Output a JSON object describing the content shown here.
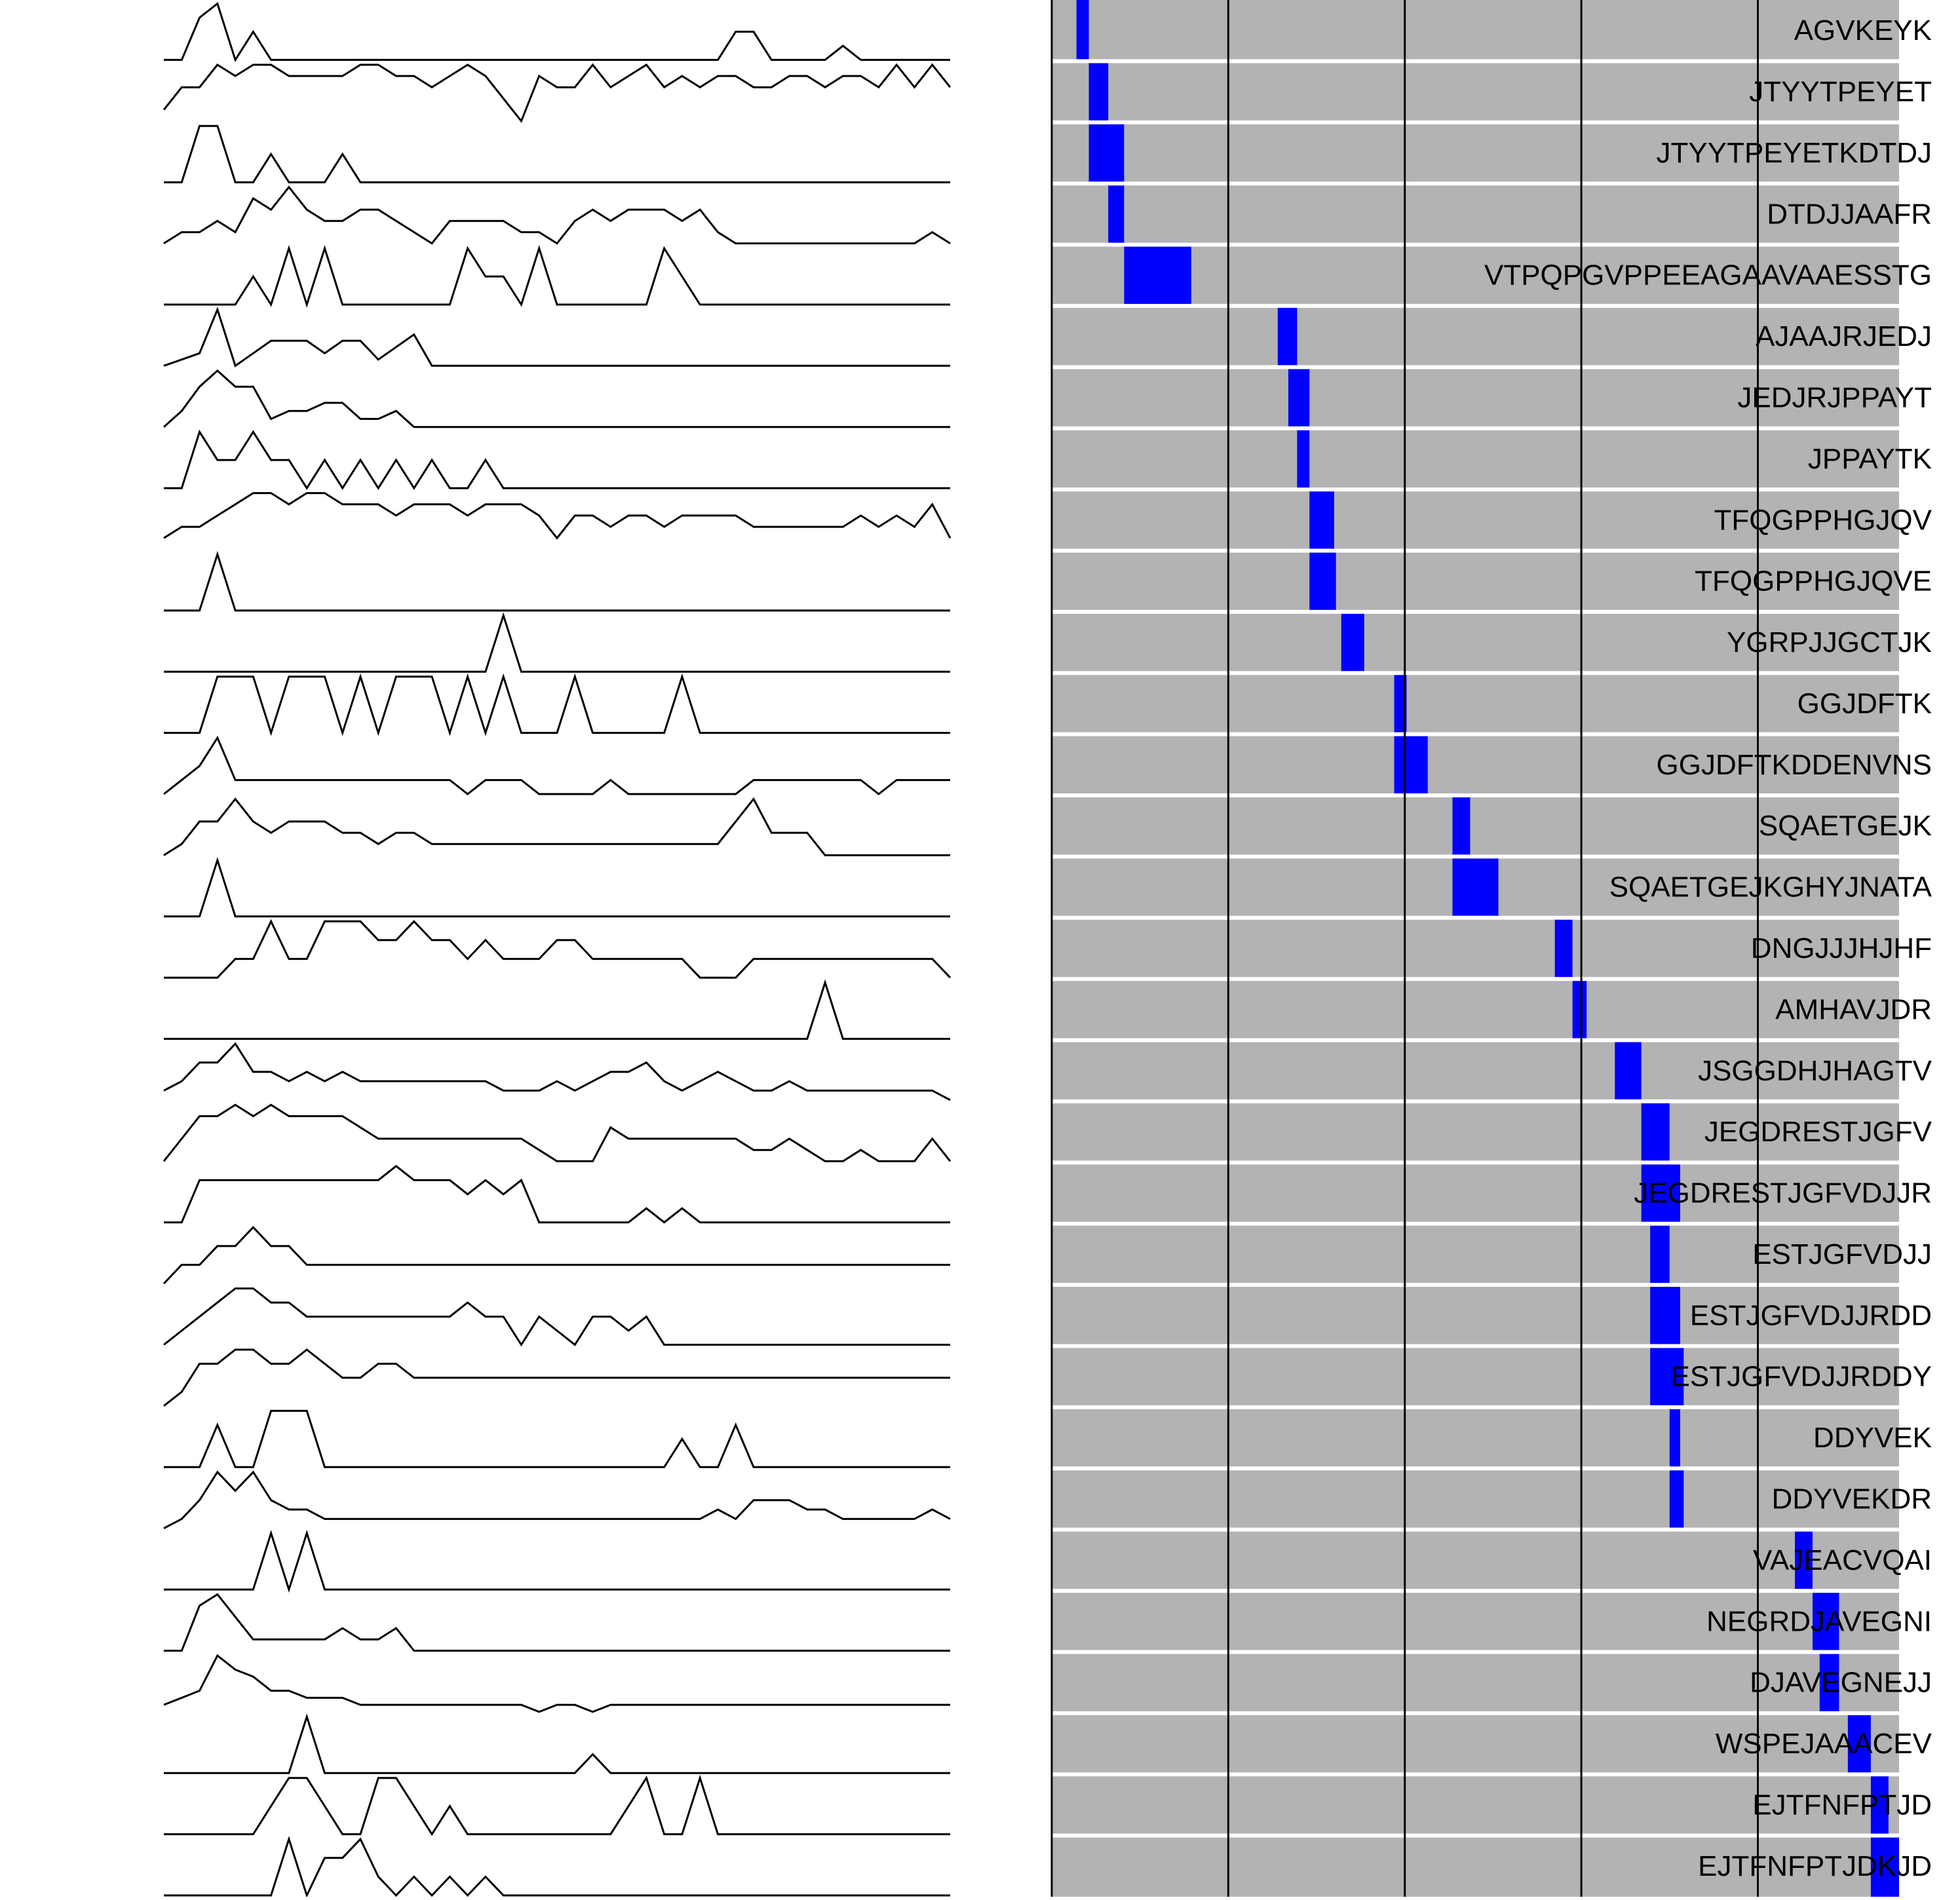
{
  "chart_data": {
    "type": "peptide-coverage",
    "title": "",
    "colors": {
      "lane_background": "#b3b3b3",
      "lane_separator": "#ffffff",
      "coverage_bar": "#0000ff",
      "trace": "#000000",
      "gridline": "#000000"
    },
    "coverage_domain": [
      0,
      480
    ],
    "gridlines": [
      0,
      100,
      200,
      300,
      400
    ],
    "peptides": [
      {
        "sequence": "AGVKEYK",
        "start": 14,
        "end": 21
      },
      {
        "sequence": "JTYYTPEYET",
        "start": 21,
        "end": 32
      },
      {
        "sequence": "JTYYTPEYETKDTDJ",
        "start": 21,
        "end": 41
      },
      {
        "sequence": "DTDJJAAFR",
        "start": 32,
        "end": 41
      },
      {
        "sequence": "VTPQPGVPPEEAGAAVAAESSTG",
        "start": 41,
        "end": 79
      },
      {
        "sequence": "AJAAJRJEDJ",
        "start": 128,
        "end": 139
      },
      {
        "sequence": "JEDJRJPPAYT",
        "start": 134,
        "end": 146
      },
      {
        "sequence": "JPPAYTK",
        "start": 139,
        "end": 146
      },
      {
        "sequence": "TFQGPPHGJQV",
        "start": 146,
        "end": 160
      },
      {
        "sequence": "TFQGPPHGJQVE",
        "start": 146,
        "end": 161
      },
      {
        "sequence": "YGRPJJGCTJK",
        "start": 164,
        "end": 177
      },
      {
        "sequence": "GGJDFTK",
        "start": 194,
        "end": 201
      },
      {
        "sequence": "GGJDFTKDDENVNS",
        "start": 194,
        "end": 213
      },
      {
        "sequence": "SQAETGEJK",
        "start": 227,
        "end": 237
      },
      {
        "sequence": "SQAETGEJKGHYJNATA",
        "start": 227,
        "end": 253
      },
      {
        "sequence": "DNGJJJHJHF",
        "start": 285,
        "end": 295
      },
      {
        "sequence": "AMHAVJDR",
        "start": 295,
        "end": 303
      },
      {
        "sequence": "JSGGDHJHAGTV",
        "start": 319,
        "end": 334
      },
      {
        "sequence": "JEGDRESTJGFV",
        "start": 334,
        "end": 350
      },
      {
        "sequence": "JEGDRESTJGFVDJJR",
        "start": 334,
        "end": 356
      },
      {
        "sequence": "ESTJGFVDJJ",
        "start": 339,
        "end": 350
      },
      {
        "sequence": "ESTJGFVDJJRDD",
        "start": 339,
        "end": 356
      },
      {
        "sequence": "ESTJGFVDJJRDDY",
        "start": 339,
        "end": 358
      },
      {
        "sequence": "DDYVEK",
        "start": 350,
        "end": 356
      },
      {
        "sequence": "DDYVEKDR",
        "start": 350,
        "end": 358
      },
      {
        "sequence": "VAJEACVQAI",
        "start": 421,
        "end": 431
      },
      {
        "sequence": "NEGRDJAVEGNI",
        "start": 431,
        "end": 446
      },
      {
        "sequence": "DJAVEGNEJJ",
        "start": 435,
        "end": 446
      },
      {
        "sequence": "WSPEJAAACEV",
        "start": 451,
        "end": 464
      },
      {
        "sequence": "EJTFNFPTJD",
        "start": 464,
        "end": 474
      },
      {
        "sequence": "EJTFNFPTJDKJD",
        "start": 464,
        "end": 480
      }
    ],
    "traces": [
      [
        0,
        0,
        3,
        4,
        0,
        2,
        0,
        0,
        0,
        0,
        0,
        0,
        0,
        0,
        0,
        0,
        0,
        0,
        0,
        0,
        0,
        0,
        0,
        0,
        0,
        0,
        0,
        0,
        0,
        0,
        0,
        0,
        2,
        2,
        0,
        0,
        0,
        0,
        1,
        0,
        0,
        0,
        0,
        0,
        0
      ],
      [
        1,
        3,
        3,
        5,
        4,
        5,
        5,
        4,
        4,
        4,
        4,
        5,
        5,
        4,
        4,
        3,
        4,
        5,
        4,
        2,
        0,
        4,
        3,
        3,
        5,
        3,
        4,
        5,
        3,
        4,
        3,
        4,
        4,
        3,
        3,
        4,
        4,
        3,
        4,
        4,
        3,
        5,
        3,
        5,
        3
      ],
      [
        0,
        0,
        4,
        4,
        0,
        0,
        2,
        0,
        0,
        0,
        2,
        0,
        0,
        0,
        0,
        0,
        0,
        0,
        0,
        0,
        0,
        0,
        0,
        0,
        0,
        0,
        0,
        0,
        0,
        0,
        0,
        0,
        0,
        0,
        0,
        0,
        0,
        0,
        0,
        0,
        0,
        0,
        0,
        0,
        0
      ],
      [
        0,
        1,
        1,
        2,
        1,
        4,
        3,
        5,
        3,
        2,
        2,
        3,
        3,
        2,
        1,
        0,
        2,
        2,
        2,
        2,
        1,
        1,
        0,
        2,
        3,
        2,
        3,
        3,
        3,
        2,
        3,
        1,
        0,
        0,
        0,
        0,
        0,
        0,
        0,
        0,
        0,
        0,
        0,
        1,
        0
      ],
      [
        0,
        0,
        0,
        0,
        0,
        1,
        0,
        2,
        0,
        2,
        0,
        0,
        0,
        0,
        0,
        0,
        0,
        2,
        1,
        1,
        0,
        2,
        0,
        0,
        0,
        0,
        0,
        0,
        2,
        1,
        0,
        0,
        0,
        0,
        0,
        0,
        0,
        0,
        0,
        0,
        0,
        0,
        0,
        0,
        0
      ],
      [
        0,
        1,
        2,
        9,
        0,
        2,
        4,
        4,
        4,
        2,
        4,
        4,
        1,
        3,
        5,
        0,
        0,
        0,
        0,
        0,
        0,
        0,
        0,
        0,
        0,
        0,
        0,
        0,
        0,
        0,
        0,
        0,
        0,
        0,
        0,
        0,
        0,
        0,
        0,
        0,
        0,
        0,
        0,
        0,
        0
      ],
      [
        0,
        2,
        5,
        7,
        5,
        5,
        1,
        2,
        2,
        3,
        3,
        1,
        1,
        2,
        0,
        0,
        0,
        0,
        0,
        0,
        0,
        0,
        0,
        0,
        0,
        0,
        0,
        0,
        0,
        0,
        0,
        0,
        0,
        0,
        0,
        0,
        0,
        0,
        0,
        0,
        0,
        0,
        0,
        0,
        0
      ],
      [
        0,
        0,
        2,
        1,
        1,
        2,
        1,
        1,
        0,
        1,
        0,
        1,
        0,
        1,
        0,
        1,
        0,
        0,
        1,
        0,
        0,
        0,
        0,
        0,
        0,
        0,
        0,
        0,
        0,
        0,
        0,
        0,
        0,
        0,
        0,
        0,
        0,
        0,
        0,
        0,
        0,
        0,
        0,
        0,
        0
      ],
      [
        1,
        2,
        2,
        3,
        4,
        5,
        5,
        4,
        5,
        5,
        4,
        4,
        4,
        3,
        4,
        4,
        4,
        3,
        4,
        4,
        4,
        3,
        1,
        3,
        3,
        2,
        3,
        3,
        2,
        3,
        3,
        3,
        3,
        2,
        2,
        2,
        2,
        2,
        2,
        3,
        2,
        3,
        2,
        4,
        1
      ],
      [
        0,
        0,
        0,
        6,
        0,
        0,
        0,
        0,
        0,
        0,
        0,
        0,
        0,
        0,
        0,
        0,
        0,
        0,
        0,
        0,
        0,
        0,
        0,
        0,
        0,
        0,
        0,
        0,
        0,
        0,
        0,
        0,
        0,
        0,
        0,
        0,
        0,
        0,
        0,
        0,
        0,
        0,
        0,
        0,
        0
      ],
      [
        0,
        0,
        0,
        0,
        0,
        0,
        0,
        0,
        0,
        0,
        0,
        0,
        0,
        0,
        0,
        0,
        0,
        0,
        0,
        6,
        0,
        0,
        0,
        0,
        0,
        0,
        0,
        0,
        0,
        0,
        0,
        0,
        0,
        0,
        0,
        0,
        0,
        0,
        0,
        0,
        0,
        0,
        0,
        0,
        0
      ],
      [
        0,
        0,
        0,
        1,
        1,
        1,
        0,
        1,
        1,
        1,
        0,
        1,
        0,
        1,
        1,
        1,
        0,
        1,
        0,
        1,
        0,
        0,
        0,
        1,
        0,
        0,
        0,
        0,
        0,
        1,
        0,
        0,
        0,
        0,
        0,
        0,
        0,
        0,
        0,
        0,
        0,
        0,
        0,
        0,
        0
      ],
      [
        0,
        1,
        2,
        4,
        1,
        1,
        1,
        1,
        1,
        1,
        1,
        1,
        1,
        1,
        1,
        1,
        1,
        0,
        1,
        1,
        1,
        0,
        0,
        0,
        0,
        1,
        0,
        0,
        0,
        0,
        0,
        0,
        0,
        1,
        1,
        1,
        1,
        1,
        1,
        1,
        0,
        1,
        1,
        1,
        1
      ],
      [
        0,
        1,
        3,
        3,
        5,
        3,
        2,
        3,
        3,
        3,
        2,
        2,
        1,
        2,
        2,
        1,
        1,
        1,
        1,
        1,
        1,
        1,
        1,
        1,
        1,
        1,
        1,
        1,
        1,
        1,
        1,
        1,
        3,
        5,
        2,
        2,
        2,
        0,
        0,
        0,
        0,
        0,
        0,
        0,
        0
      ],
      [
        0,
        0,
        0,
        6,
        0,
        0,
        0,
        0,
        0,
        0,
        0,
        0,
        0,
        0,
        0,
        0,
        0,
        0,
        0,
        0,
        0,
        0,
        0,
        0,
        0,
        0,
        0,
        0,
        0,
        0,
        0,
        0,
        0,
        0,
        0,
        0,
        0,
        0,
        0,
        0,
        0,
        0,
        0,
        0,
        0
      ],
      [
        0,
        0,
        0,
        0,
        1,
        1,
        3,
        1,
        1,
        3,
        3,
        3,
        2,
        2,
        3,
        2,
        2,
        1,
        2,
        1,
        1,
        1,
        2,
        2,
        1,
        1,
        1,
        1,
        1,
        1,
        0,
        0,
        0,
        1,
        1,
        1,
        1,
        1,
        1,
        1,
        1,
        1,
        1,
        1,
        0
      ],
      [
        0,
        0,
        0,
        0,
        0,
        0,
        0,
        0,
        0,
        0,
        0,
        0,
        0,
        0,
        0,
        0,
        0,
        0,
        0,
        0,
        0,
        0,
        0,
        0,
        0,
        0,
        0,
        0,
        0,
        0,
        0,
        0,
        0,
        0,
        0,
        0,
        0,
        6,
        0,
        0,
        0,
        0,
        0,
        0,
        0
      ],
      [
        1,
        2,
        4,
        4,
        6,
        3,
        3,
        2,
        3,
        2,
        3,
        2,
        2,
        2,
        2,
        2,
        2,
        2,
        2,
        1,
        1,
        1,
        2,
        1,
        2,
        3,
        3,
        4,
        2,
        1,
        2,
        3,
        2,
        1,
        1,
        2,
        1,
        1,
        1,
        1,
        1,
        1,
        1,
        1,
        0
      ],
      [
        0,
        2,
        4,
        4,
        5,
        4,
        5,
        4,
        4,
        4,
        4,
        3,
        2,
        2,
        2,
        2,
        2,
        2,
        2,
        2,
        2,
        1,
        0,
        0,
        0,
        3,
        2,
        2,
        2,
        2,
        2,
        2,
        2,
        1,
        1,
        2,
        1,
        0,
        0,
        1,
        0,
        0,
        0,
        2,
        0
      ],
      [
        0,
        0,
        3,
        3,
        3,
        3,
        3,
        3,
        3,
        3,
        3,
        3,
        3,
        4,
        3,
        3,
        3,
        2,
        3,
        2,
        3,
        0,
        0,
        0,
        0,
        0,
        0,
        1,
        0,
        1,
        0,
        0,
        0,
        0,
        0,
        0,
        0,
        0,
        0,
        0,
        0,
        0,
        0,
        0,
        0
      ],
      [
        0,
        1,
        1,
        2,
        2,
        3,
        2,
        2,
        1,
        1,
        1,
        1,
        1,
        1,
        1,
        1,
        1,
        1,
        1,
        1,
        1,
        1,
        1,
        1,
        1,
        1,
        1,
        1,
        1,
        1,
        1,
        1,
        1,
        1,
        1,
        1,
        1,
        1,
        1,
        1,
        1,
        1,
        1,
        1,
        1
      ],
      [
        0,
        1,
        2,
        3,
        4,
        4,
        3,
        3,
        2,
        2,
        2,
        2,
        2,
        2,
        2,
        2,
        2,
        3,
        2,
        2,
        0,
        2,
        1,
        0,
        2,
        2,
        1,
        2,
        0,
        0,
        0,
        0,
        0,
        0,
        0,
        0,
        0,
        0,
        0,
        0,
        0,
        0,
        0,
        0,
        0
      ],
      [
        0,
        1,
        3,
        3,
        4,
        4,
        3,
        3,
        4,
        3,
        2,
        2,
        3,
        3,
        2,
        2,
        2,
        2,
        2,
        2,
        2,
        2,
        2,
        2,
        2,
        2,
        2,
        2,
        2,
        2,
        2,
        2,
        2,
        2,
        2,
        2,
        2,
        2,
        2,
        2,
        2,
        2,
        2,
        2,
        2
      ],
      [
        0,
        0,
        0,
        3,
        0,
        0,
        4,
        4,
        4,
        0,
        0,
        0,
        0,
        0,
        0,
        0,
        0,
        0,
        0,
        0,
        0,
        0,
        0,
        0,
        0,
        0,
        0,
        0,
        0,
        2,
        0,
        0,
        3,
        0,
        0,
        0,
        0,
        0,
        0,
        0,
        0,
        0,
        0,
        0,
        0
      ],
      [
        0,
        1,
        3,
        6,
        4,
        6,
        3,
        2,
        2,
        1,
        1,
        1,
        1,
        1,
        1,
        1,
        1,
        1,
        1,
        1,
        1,
        1,
        1,
        1,
        1,
        1,
        1,
        1,
        1,
        1,
        1,
        2,
        1,
        3,
        3,
        3,
        2,
        2,
        1,
        1,
        1,
        1,
        1,
        2,
        1
      ],
      [
        0,
        0,
        0,
        0,
        0,
        0,
        3,
        0,
        3,
        0,
        0,
        0,
        0,
        0,
        0,
        0,
        0,
        0,
        0,
        0,
        0,
        0,
        0,
        0,
        0,
        0,
        0,
        0,
        0,
        0,
        0,
        0,
        0,
        0,
        0,
        0,
        0,
        0,
        0,
        0,
        0,
        0,
        0,
        0,
        0
      ],
      [
        0,
        0,
        4,
        5,
        3,
        1,
        1,
        1,
        1,
        1,
        2,
        1,
        1,
        2,
        0,
        0,
        0,
        0,
        0,
        0,
        0,
        0,
        0,
        0,
        0,
        0,
        0,
        0,
        0,
        0,
        0,
        0,
        0,
        0,
        0,
        0,
        0,
        0,
        0,
        0,
        0,
        0,
        0,
        0,
        0
      ],
      [
        1,
        2,
        3,
        8,
        6,
        5,
        3,
        3,
        2,
        2,
        2,
        1,
        1,
        1,
        1,
        1,
        1,
        1,
        1,
        1,
        1,
        0,
        1,
        1,
        0,
        1,
        1,
        1,
        1,
        1,
        1,
        1,
        1,
        1,
        1,
        1,
        1,
        1,
        1,
        1,
        1,
        1,
        1,
        1,
        1
      ],
      [
        0,
        0,
        0,
        0,
        0,
        0,
        0,
        0,
        3,
        0,
        0,
        0,
        0,
        0,
        0,
        0,
        0,
        0,
        0,
        0,
        0,
        0,
        0,
        0,
        1,
        0,
        0,
        0,
        0,
        0,
        0,
        0,
        0,
        0,
        0,
        0,
        0,
        0,
        0,
        0,
        0,
        0,
        0,
        0,
        0
      ],
      [
        0,
        0,
        0,
        0,
        0,
        0,
        1,
        2,
        2,
        1,
        0,
        0,
        2,
        2,
        1,
        0,
        1,
        0,
        0,
        0,
        0,
        0,
        0,
        0,
        0,
        0,
        1,
        2,
        0,
        0,
        2,
        0,
        0,
        0,
        0,
        0,
        0,
        0,
        0,
        0,
        0,
        0,
        0,
        0,
        0
      ],
      [
        0,
        0,
        0,
        0,
        0,
        0,
        0,
        3,
        0,
        2,
        2,
        3,
        1,
        0,
        1,
        0,
        1,
        0,
        1,
        0,
        0,
        0,
        0,
        0,
        0,
        0,
        0,
        0,
        0,
        0,
        0,
        0,
        0,
        0,
        0,
        0,
        0,
        0,
        0,
        0,
        0,
        0,
        0,
        0,
        0
      ]
    ]
  }
}
